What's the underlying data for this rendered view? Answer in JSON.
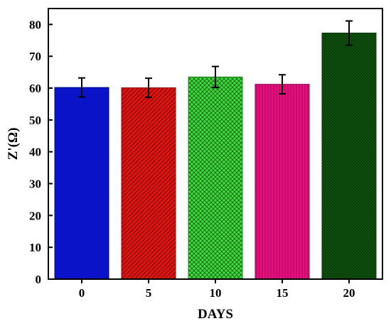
{
  "chart_data": {
    "type": "bar",
    "title": "",
    "xlabel": "DAYS",
    "ylabel": "Z'(Ω)",
    "categories": [
      "0",
      "5",
      "10",
      "15",
      "20"
    ],
    "values": [
      60.2,
      60.1,
      63.5,
      61.2,
      77.3
    ],
    "errors": [
      3.0,
      3.0,
      3.3,
      3.0,
      3.8
    ],
    "ylim": [
      0,
      85
    ],
    "yticks": [
      "0",
      "10",
      "20",
      "30",
      "40",
      "50",
      "60",
      "70",
      "80"
    ],
    "colors": [
      "#0b13c9",
      "#e3120f",
      "#3ddd3a",
      "#e40e7d",
      "#0f5a0f"
    ],
    "patterns": [
      "solid",
      "diagonal-hatch",
      "cross-hatch",
      "vertical-hatch",
      "fine-cross-hatch"
    ],
    "legend": "none",
    "grid": false
  }
}
